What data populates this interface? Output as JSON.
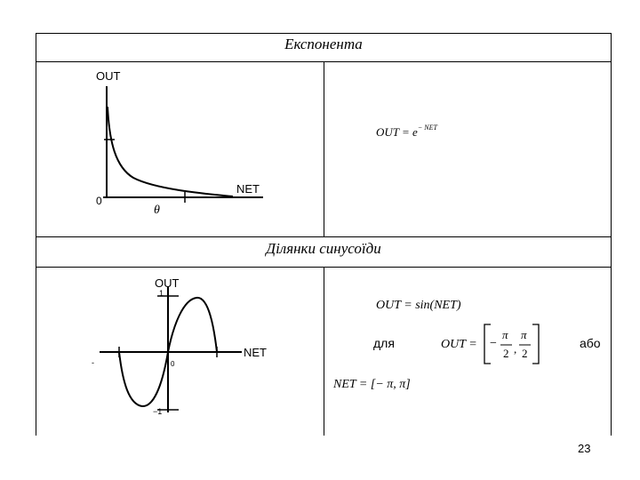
{
  "table": {
    "row1_header": "Експонента",
    "row2_header": "Ділянки синусоїди"
  },
  "exp_plot": {
    "ylabel": "OUT",
    "xlabel": "NET",
    "origin_label": "0",
    "theta_label": "θ"
  },
  "exp_formula": {
    "lhs": "OUT = e",
    "exponent": "− NET"
  },
  "sin_plot": {
    "ylabel": "OUT",
    "xlabel": "NET",
    "ytick_top": "1",
    "ytick_bottom": "−1",
    "origin_label": "0",
    "left_tick": "-"
  },
  "sin_formula": {
    "main": "OUT = sin(NET)",
    "for_word": "для",
    "out_eq": "OUT =",
    "neg_sign": "−",
    "pi": "π",
    "two": "2",
    "comma": ",",
    "or_word": "або",
    "net_range": "NET = [− π, π]"
  },
  "footer": {
    "page_number": "23"
  }
}
